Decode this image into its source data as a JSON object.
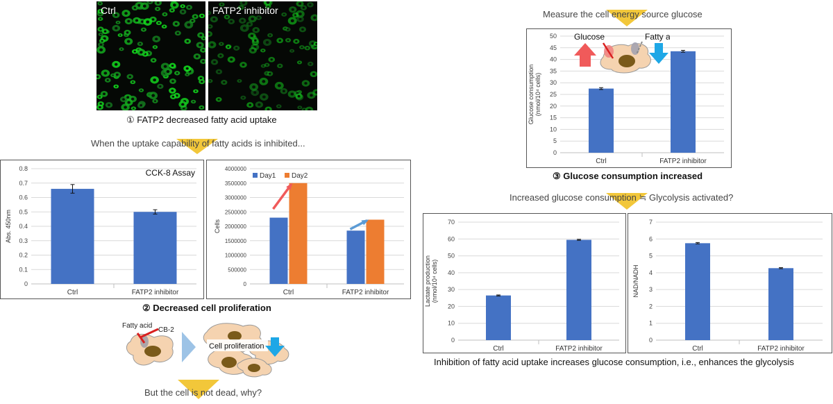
{
  "fig1": {
    "ctrl_label": "Ctrl",
    "inhibitor_label": "FATP2 inhibitor",
    "caption": "① FATP2 decreased fatty acid uptake",
    "subcaption": "When the uptake capability of fatty acids is inhibited..."
  },
  "fig2": {
    "caption": "② Decreased cell proliferation",
    "schematic": {
      "fatty_acid": "Fatty acid",
      "cb2": "CB-2",
      "cell_prolif": "Cell proliferation"
    },
    "question": "But the cell is not dead, why?"
  },
  "fig3": {
    "header": "Measure the cell energy source glucose",
    "caption": "③ Glucose consumption  increased",
    "subcaption": "Increased glucose consumption ≒ Glycolysis activated?",
    "inset": {
      "glucose": "Glucose",
      "fatty_acid": "Fatty acid"
    }
  },
  "final_caption": "Inhibition  of fatty acid uptake increases glucose consumption,  i.e., enhances  the glycolysis",
  "colors": {
    "bar_blue": "#4472c4",
    "bar_orange": "#ed7d31",
    "chevron": "#f2c73a",
    "up_arrow": "#f05a5a",
    "down_arrow": "#1ea7e6"
  },
  "chart_data": [
    {
      "id": "cck8",
      "type": "bar",
      "title": "CCK-8 Assay",
      "ylabel": "Abs. 450nm",
      "categories": [
        "Ctrl",
        "FATP2  inhibitor"
      ],
      "values": [
        0.66,
        0.5
      ],
      "errors": [
        0.03,
        0.015
      ],
      "ylim": [
        0,
        0.8
      ],
      "yticks": [
        "0",
        "0.1",
        "0.2",
        "0.3",
        "0.4",
        "0.5",
        "0.6",
        "0.7",
        "0.8"
      ]
    },
    {
      "id": "cells",
      "type": "bar",
      "ylabel": "Cells",
      "categories": [
        "Ctrl",
        "FATP2  inhibitor"
      ],
      "series": [
        {
          "name": "Day1",
          "values": [
            2300000,
            1850000
          ]
        },
        {
          "name": "Day2",
          "values": [
            3500000,
            2230000
          ]
        }
      ],
      "legend": "top-left",
      "ylim": [
        0,
        4000000
      ],
      "yticks": [
        "0",
        "500000",
        "1000000",
        "1500000",
        "2000000",
        "2500000",
        "3000000",
        "3500000",
        "4000000"
      ]
    },
    {
      "id": "glucose",
      "type": "bar",
      "ylabel": "Glucose consumption (nmol/10⁴ cells)",
      "categories": [
        "Ctrl",
        "FATP2  inhibitor"
      ],
      "values": [
        27.5,
        43.5
      ],
      "errors": [
        0.4,
        0.4
      ],
      "ylim": [
        0,
        50
      ],
      "yticks": [
        "0",
        "5",
        "10",
        "15",
        "20",
        "25",
        "30",
        "35",
        "40",
        "45",
        "50"
      ]
    },
    {
      "id": "lactate",
      "type": "bar",
      "ylabel": "Lactate production (nmol/10⁴ cells)",
      "categories": [
        "Ctrl",
        "FATP2  inhibitor"
      ],
      "values": [
        26.5,
        59.5
      ],
      "errors": [
        0.3,
        0.3
      ],
      "ylim": [
        0,
        70
      ],
      "yticks": [
        "0",
        "10",
        "20",
        "30",
        "40",
        "50",
        "60",
        "70"
      ]
    },
    {
      "id": "nadnadh",
      "type": "bar",
      "ylabel": "NAD/NADH",
      "categories": [
        "Ctrl",
        "FATP2  inhibitor"
      ],
      "values": [
        5.75,
        4.27
      ],
      "errors": [
        0.04,
        0.03
      ],
      "ylim": [
        0,
        7
      ],
      "yticks": [
        "0",
        "1",
        "2",
        "3",
        "4",
        "5",
        "6",
        "7"
      ]
    }
  ]
}
